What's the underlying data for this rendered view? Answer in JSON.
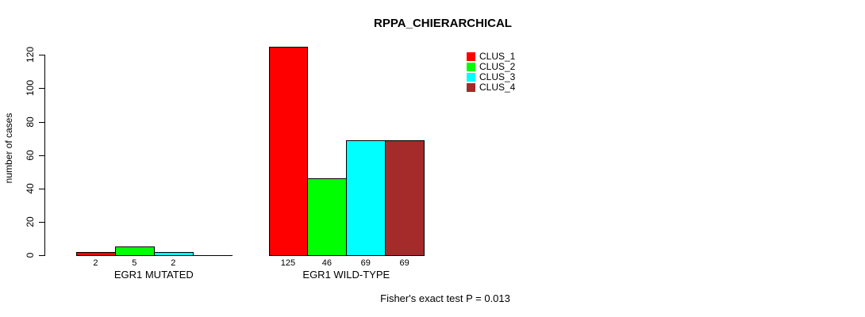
{
  "chart_data": {
    "type": "bar",
    "title": "RPPA_CHIERARCHICAL",
    "ylabel": "number of cases",
    "xlabel": "",
    "ylim": [
      0,
      120
    ],
    "yticks": [
      0,
      20,
      40,
      60,
      80,
      100,
      120
    ],
    "grid": false,
    "legend_position": "top-right",
    "categories": [
      "EGR1 MUTATED",
      "EGR1 WILD-TYPE"
    ],
    "series": [
      {
        "name": "CLUS_1",
        "color": "#ff0000",
        "values": [
          2,
          125
        ]
      },
      {
        "name": "CLUS_2",
        "color": "#00ff00",
        "values": [
          5,
          46
        ]
      },
      {
        "name": "CLUS_3",
        "color": "#00ffff",
        "values": [
          2,
          69
        ]
      },
      {
        "name": "CLUS_4",
        "color": "#a52a2a",
        "values": [
          0,
          69
        ]
      }
    ],
    "bar_value_labels": [
      [
        "2",
        "5",
        "2",
        ""
      ],
      [
        "125",
        "46",
        "69",
        "69"
      ]
    ],
    "footnote": "Fisher's exact test P = 0.013"
  }
}
